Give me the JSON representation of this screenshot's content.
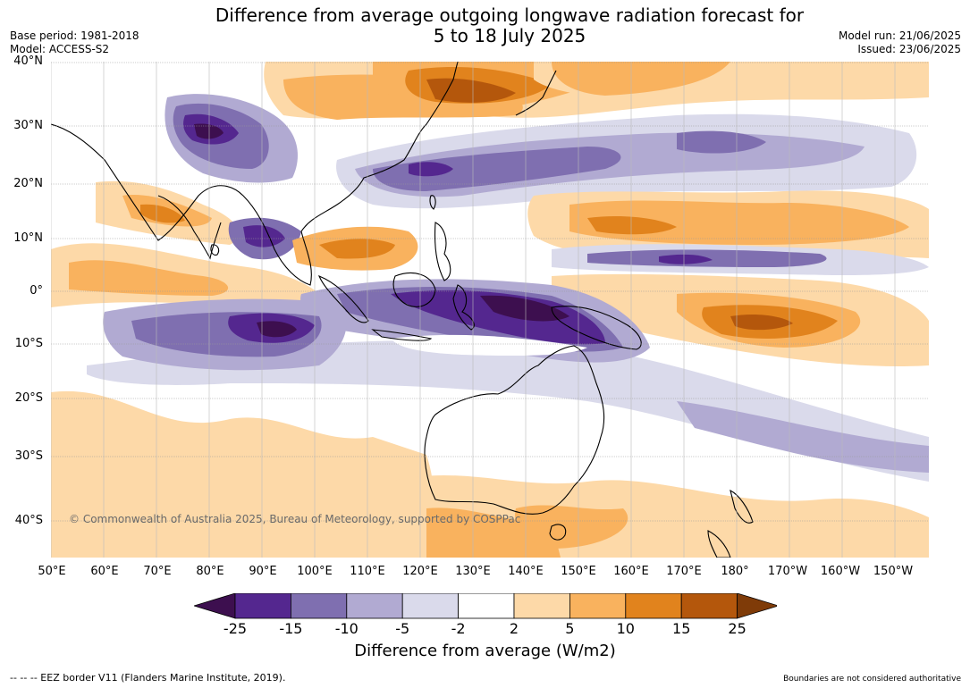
{
  "title_line1": "Difference from average outgoing longwave radiation forecast for",
  "title_line2": "5 to 18 July 2025",
  "meta_left": [
    "Base period: 1981-2018",
    "Model: ACCESS-S2"
  ],
  "meta_right": [
    "Model run: 21/06/2025",
    "Issued: 23/06/2025"
  ],
  "lat_labels": [
    "40°N",
    "30°N",
    "20°N",
    "10°N",
    "0°",
    "10°S",
    "20°S",
    "30°S",
    "40°S"
  ],
  "lon_labels": [
    "50°E",
    "60°E",
    "70°E",
    "80°E",
    "90°E",
    "100°E",
    "110°E",
    "120°E",
    "130°E",
    "140°E",
    "150°E",
    "160°E",
    "170°E",
    "180°",
    "170°W",
    "160°W",
    "150°W"
  ],
  "copyright": "© Commonwealth of Australia 2025, Bureau of Meteorology, supported by COSPPac",
  "colorbar": {
    "ticks": [
      "-25",
      "-15",
      "-10",
      "-5",
      "-2",
      "2",
      "5",
      "10",
      "15",
      "25"
    ],
    "colors": [
      "#3d0f4f",
      "#54278f",
      "#7f6fb0",
      "#b1aad2",
      "#dadaeb",
      "#ffffff",
      "#fdd9a8",
      "#f9b25e",
      "#e1831d",
      "#b4570c",
      "#7f3b08"
    ],
    "title": "Difference from average (W/m2)"
  },
  "footer_left": "--  --  -- EEZ border V11 (Flanders Marine Institute, 2019).",
  "footer_right": "Boundaries are not considered authoritative"
}
